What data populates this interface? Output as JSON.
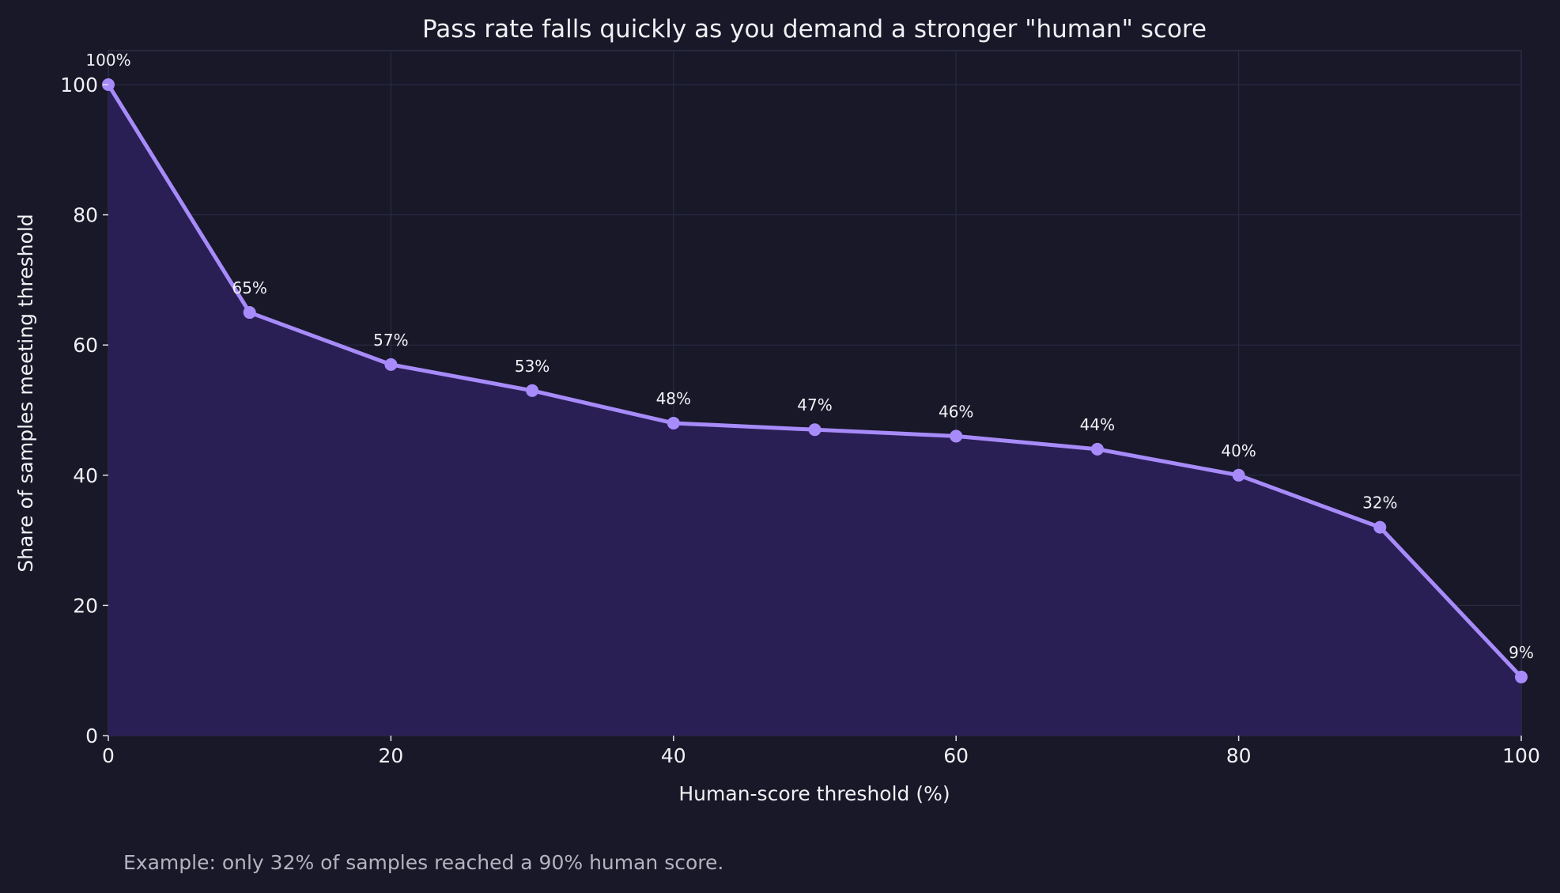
{
  "chart_data": {
    "type": "area",
    "title": "Pass rate falls quickly as you demand a stronger \"human\" score",
    "xlabel": "Human-score threshold (%)",
    "ylabel": "Share of samples meeting threshold",
    "x": [
      0,
      10,
      20,
      30,
      40,
      50,
      60,
      70,
      80,
      90,
      100
    ],
    "values": [
      100,
      65,
      57,
      53,
      48,
      47,
      46,
      44,
      40,
      32,
      9
    ],
    "data_labels": [
      "100%",
      "65%",
      "57%",
      "53%",
      "48%",
      "47%",
      "46%",
      "44%",
      "40%",
      "32%",
      "9%"
    ],
    "xlim": [
      0,
      100
    ],
    "ylim": [
      0,
      105
    ],
    "xticks": [
      0,
      20,
      40,
      60,
      80,
      100
    ],
    "yticks": [
      0,
      20,
      40,
      60,
      80,
      100
    ],
    "grid": true,
    "colors": {
      "line": "#a78bfa",
      "fill": "#2a1f55",
      "background": "#181828",
      "grid": "#2a2a42"
    }
  },
  "footnote": "Example: only 32% of samples reached a 90% human score."
}
